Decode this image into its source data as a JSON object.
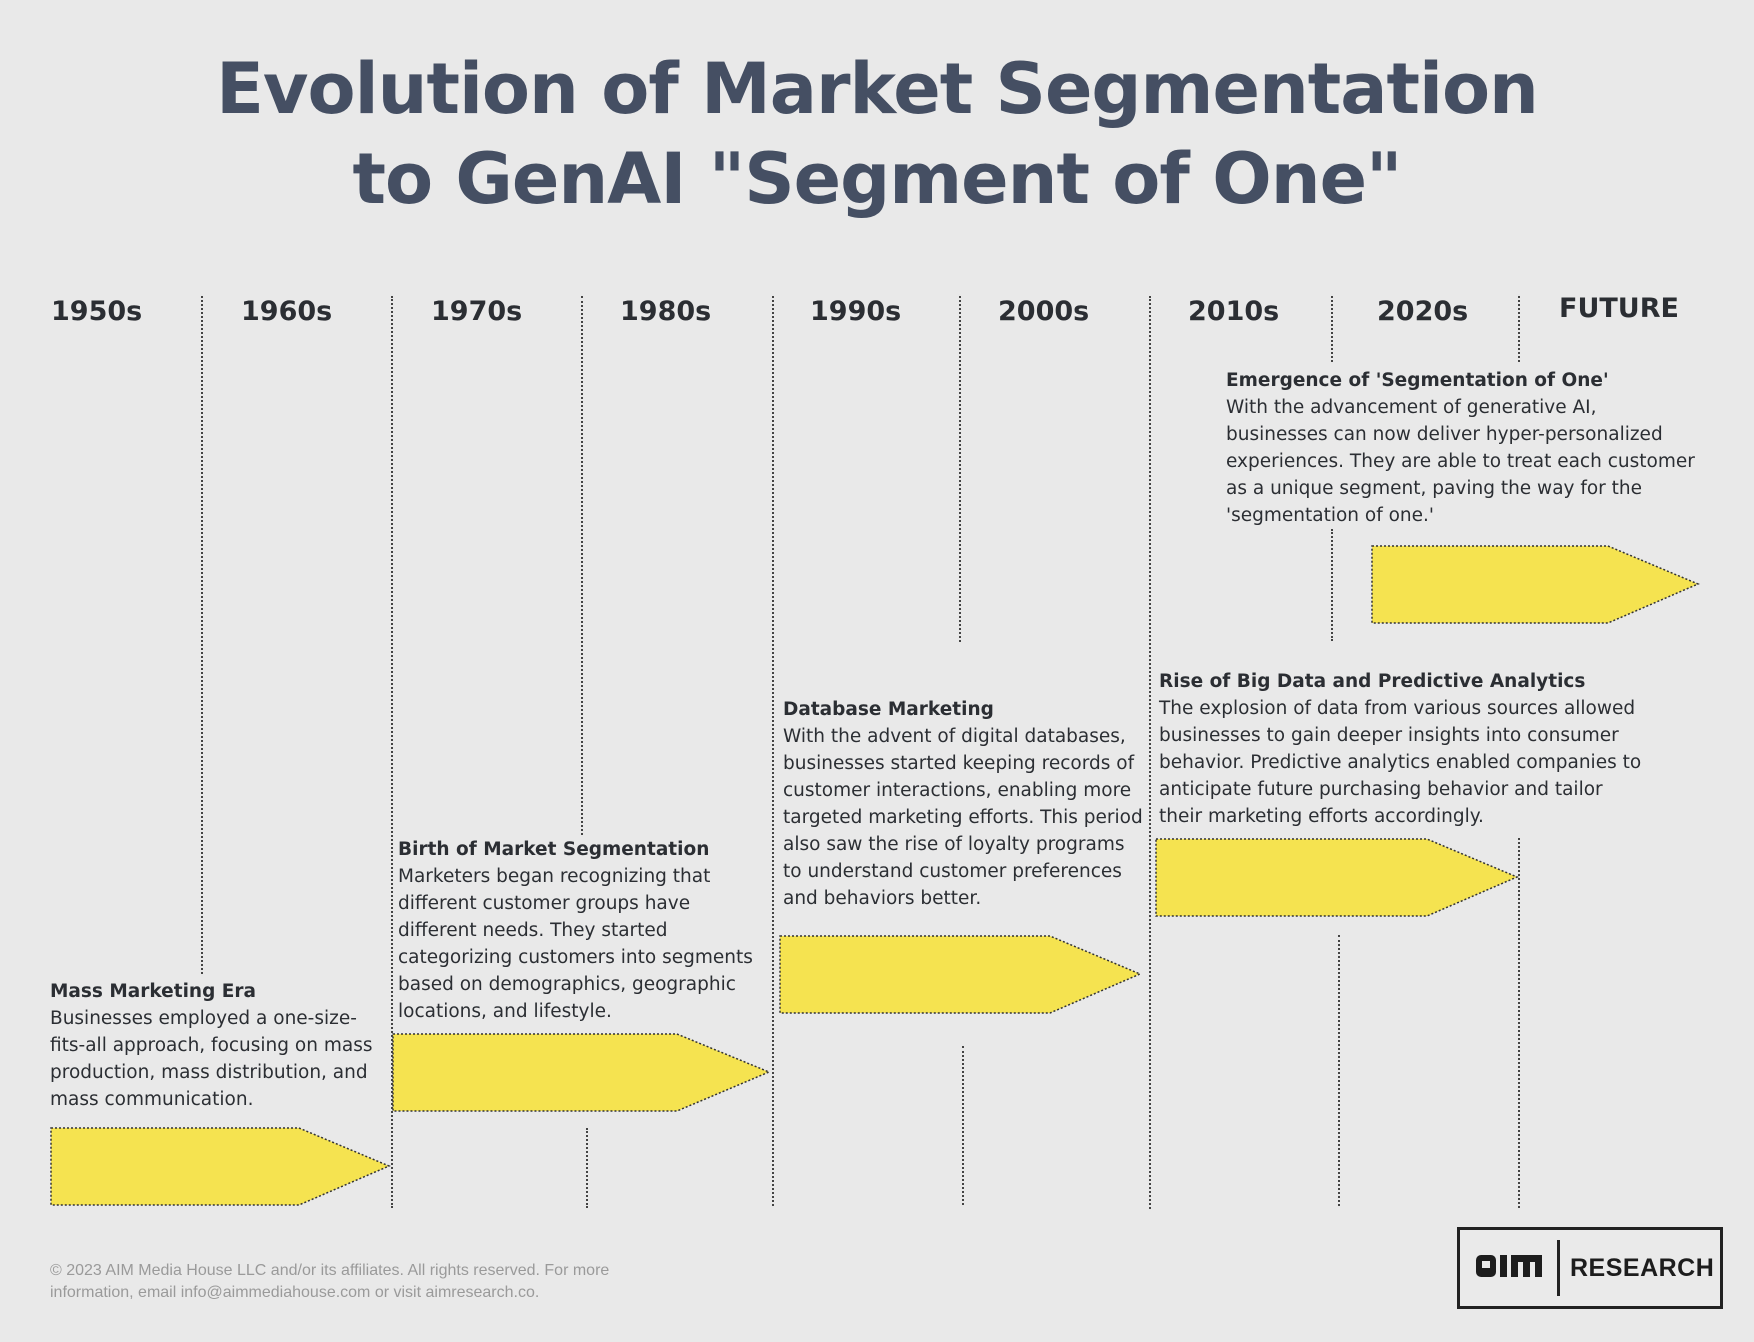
{
  "title": {
    "line1": "Evolution of Market Segmentation",
    "line2": "to GenAI \"Segment of One\""
  },
  "decades": [
    "1950s",
    "1960s",
    "1970s",
    "1980s",
    "1990s",
    "2000s",
    "2010s",
    "2020s",
    "FUTURE"
  ],
  "events": [
    {
      "title": "Mass Marketing Era",
      "description": "Businesses employed a one-size-fits-all approach, focusing on mass production, mass distribution, and mass communication."
    },
    {
      "title": "Birth of Market Segmentation",
      "description": "Marketers began recognizing that different customer groups have different needs. They started categorizing customers into segments based on demographics, geographic locations, and lifestyle."
    },
    {
      "title": "Database Marketing",
      "description": "With the advent of digital databases, businesses started keeping records of customer interactions, enabling more targeted marketing efforts. This period also saw the rise of loyalty programs to understand customer preferences and behaviors better."
    },
    {
      "title": "Rise of Big Data and Predictive Analytics",
      "description": "The explosion of data from various sources allowed businesses to gain deeper insights into consumer behavior. Predictive analytics enabled companies to anticipate future purchasing behavior and tailor their marketing efforts accordingly."
    },
    {
      "title": "Emergence of 'Segmentation of One'",
      "description": "With the advancement of generative AI, businesses can now deliver hyper-personalized experiences. They are able to treat each customer as a unique segment, paving the way for the 'segmentation of one.'"
    }
  ],
  "colors": {
    "background": "#e9e9e9",
    "title": "#454f63",
    "arrow_fill": "#f5e350",
    "text": "#2b2e33",
    "footer": "#9a9a9a"
  },
  "footer": {
    "text": "© 2023 AIM Media House LLC and/or its affiliates. All rights reserved. For more information, email info@aimmediahouse.com or visit aimresearch.co."
  },
  "logo": {
    "mark": "AIM",
    "word": "RESEARCH"
  }
}
